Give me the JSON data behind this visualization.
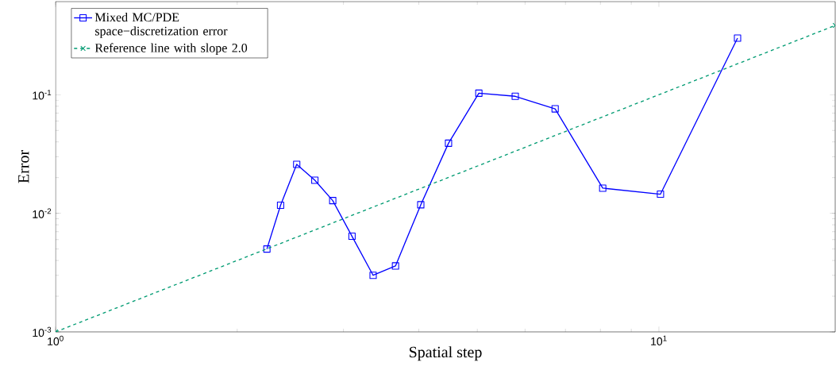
{
  "chart_data": {
    "type": "line",
    "xlabel": "Spatial step",
    "ylabel": "Error",
    "log": "xy",
    "grid": false,
    "legend": "top left",
    "xlim": [
      1,
      19.6
    ],
    "ylim": [
      0.001,
      0.61
    ],
    "xticks": [
      {
        "value": 1,
        "label": "10$^{0}$"
      },
      {
        "value": 10,
        "label": "10$^{1}$"
      }
    ],
    "yticks": [
      {
        "value": 0.001,
        "label": "10$^{-3}$"
      },
      {
        "value": 0.01,
        "label": "10$^{-2}$"
      },
      {
        "value": 0.1,
        "label": "10$^{-1}$"
      }
    ],
    "series": [
      {
        "name": "Mixed MC/PDE space−discretization error",
        "color": "#0000ff",
        "marker": "square",
        "line_style": "solid",
        "x": [
          2.24,
          2.36,
          2.51,
          2.69,
          2.88,
          3.1,
          3.36,
          3.66,
          4.03,
          4.48,
          5.03,
          5.78,
          6.73,
          8.07,
          10.06,
          13.5
        ],
        "values": [
          0.005,
          0.0117,
          0.0259,
          0.019,
          0.0128,
          0.0064,
          0.003,
          0.0036,
          0.0118,
          0.039,
          0.103,
          0.097,
          0.076,
          0.0163,
          0.0145,
          0.3
        ]
      },
      {
        "name": "Reference line with slope 2.0",
        "color": "#009b72",
        "marker": "cross",
        "line_style": "dashed",
        "x": [
          1,
          19.6
        ],
        "values": [
          0.001,
          0.384
        ]
      }
    ]
  }
}
